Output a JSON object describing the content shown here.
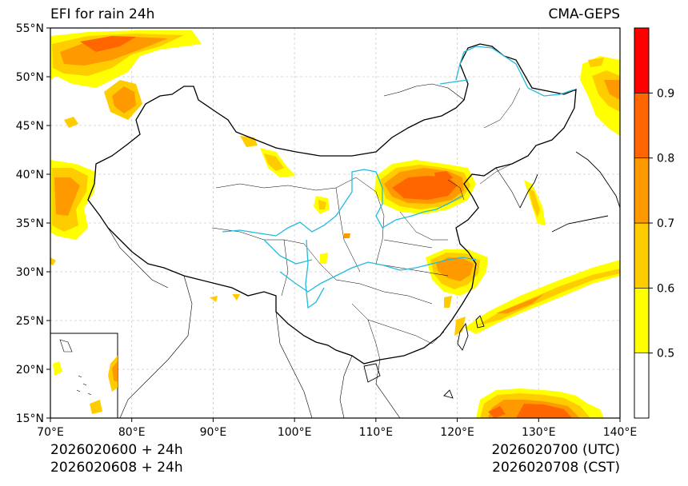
{
  "title_left": "EFI for rain 24h",
  "title_right": "CMA-GEPS",
  "init_utc": "2026020600 + 24h",
  "init_cst": "2026020608 + 24h",
  "valid_utc": "2026020700 (UTC)",
  "valid_cst": "2026020708 (CST)",
  "lat_labels": [
    "55°N",
    "50°N",
    "45°N",
    "40°N",
    "35°N",
    "30°N",
    "25°N",
    "20°N",
    "15°N"
  ],
  "lon_labels": [
    "70°E",
    "80°E",
    "90°E",
    "100°E",
    "110°E",
    "120°E",
    "130°E",
    "140°E"
  ],
  "colorbar": {
    "tick_labels": [
      "0.5",
      "0.6",
      "0.7",
      "0.8",
      "0.9"
    ],
    "colors": [
      "#ffffff",
      "#ffff00",
      "#ffcc00",
      "#ff9900",
      "#ff6600",
      "#ff0000"
    ]
  },
  "colors": {
    "rivers": "#22bbdd",
    "borders": "#000000",
    "grid": "#cccccc"
  }
}
